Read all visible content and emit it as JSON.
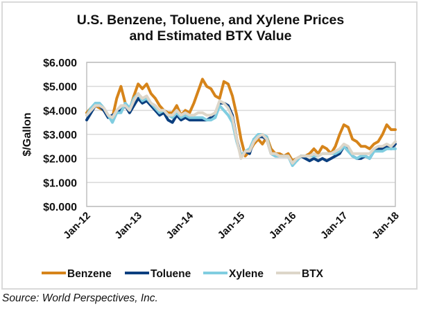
{
  "source": "Source: World Perspectives, Inc.",
  "chart_data": {
    "type": "line",
    "title_lines": [
      "U.S. Benzene, Toluene, and Xylene Prices",
      "and Estimated BTX Value"
    ],
    "xlabel": "",
    "ylabel": "$/Gallon",
    "ylim": [
      0,
      6
    ],
    "yticks": [
      "$0.000",
      "$1.000",
      "$2.000",
      "$3.000",
      "$4.000",
      "$5.000",
      "$6.000"
    ],
    "xticks": [
      "Jan-12",
      "Jan-13",
      "Jan-14",
      "Jan-15",
      "Jan-16",
      "Jan-17",
      "Jan-18"
    ],
    "x_start": "Jan-12",
    "x_step": "month",
    "grid": true,
    "legend_position": "bottom",
    "colors": {
      "Benzene": "#d6841a",
      "Toluene": "#0b3f7f",
      "Xylene": "#80cde0",
      "BTX": "#ddd6c9"
    },
    "series": [
      {
        "name": "Benzene",
        "values": [
          3.9,
          4.1,
          4.2,
          4.1,
          4.0,
          3.8,
          3.7,
          4.5,
          5.0,
          4.3,
          4.0,
          4.6,
          5.1,
          4.9,
          5.1,
          4.7,
          4.5,
          4.2,
          4.0,
          3.9,
          3.9,
          4.2,
          3.8,
          4.0,
          3.9,
          4.3,
          4.8,
          5.3,
          5.0,
          4.9,
          4.6,
          4.5,
          5.2,
          5.1,
          4.6,
          3.8,
          2.8,
          2.1,
          2.3,
          2.6,
          2.8,
          2.6,
          2.9,
          2.4,
          2.2,
          2.2,
          2.1,
          2.2,
          1.9,
          2.0,
          2.1,
          2.1,
          2.2,
          2.4,
          2.2,
          2.5,
          2.4,
          2.2,
          2.5,
          3.0,
          3.4,
          3.3,
          2.8,
          2.7,
          2.5,
          2.5,
          2.4,
          2.6,
          2.7,
          3.0,
          3.4,
          3.2,
          3.2
        ]
      },
      {
        "name": "Toluene",
        "values": [
          3.6,
          3.9,
          4.2,
          4.2,
          4.0,
          3.7,
          3.8,
          3.9,
          4.0,
          4.2,
          3.9,
          4.2,
          4.5,
          4.3,
          4.4,
          4.2,
          4.0,
          3.8,
          3.9,
          3.6,
          3.5,
          3.8,
          3.6,
          3.7,
          3.6,
          3.6,
          3.6,
          3.6,
          3.6,
          3.7,
          3.9,
          4.3,
          4.3,
          4.2,
          3.8,
          2.8,
          2.1,
          2.3,
          2.2,
          2.8,
          2.9,
          2.9,
          2.8,
          2.2,
          2.1,
          2.1,
          2.1,
          2.1,
          1.8,
          1.9,
          2.1,
          2.0,
          1.9,
          2.0,
          1.9,
          2.0,
          1.9,
          2.0,
          2.1,
          2.2,
          2.5,
          2.4,
          2.1,
          2.0,
          2.0,
          2.1,
          2.0,
          2.3,
          2.4,
          2.4,
          2.5,
          2.4,
          2.6
        ]
      },
      {
        "name": "Xylene",
        "values": [
          3.8,
          4.1,
          4.3,
          4.3,
          4.1,
          3.8,
          3.5,
          3.9,
          3.9,
          4.3,
          4.1,
          4.5,
          4.7,
          4.4,
          4.5,
          4.3,
          4.1,
          3.9,
          4.0,
          3.8,
          3.7,
          3.9,
          3.7,
          3.8,
          3.7,
          3.7,
          3.7,
          3.7,
          3.6,
          3.6,
          3.7,
          4.2,
          4.0,
          3.8,
          3.5,
          2.7,
          2.1,
          2.3,
          2.4,
          2.8,
          3.0,
          3.0,
          2.9,
          2.2,
          2.1,
          2.1,
          2.1,
          2.1,
          1.7,
          1.9,
          2.1,
          2.1,
          2.1,
          2.1,
          2.1,
          2.2,
          2.2,
          2.2,
          2.2,
          2.3,
          2.5,
          2.3,
          2.1,
          2.0,
          2.1,
          2.1,
          2.0,
          2.3,
          2.3,
          2.3,
          2.4,
          2.4,
          2.4
        ]
      },
      {
        "name": "BTX",
        "values": [
          3.8,
          4.0,
          4.2,
          4.2,
          4.1,
          3.8,
          3.7,
          4.0,
          4.2,
          4.2,
          4.0,
          4.4,
          4.7,
          4.5,
          4.6,
          4.3,
          4.2,
          4.0,
          4.0,
          3.8,
          3.8,
          4.0,
          3.8,
          3.9,
          3.8,
          3.8,
          3.9,
          3.9,
          3.8,
          3.8,
          3.9,
          4.4,
          4.3,
          4.1,
          3.7,
          2.8,
          2.0,
          2.3,
          2.3,
          2.7,
          2.9,
          3.0,
          2.8,
          2.2,
          2.2,
          2.1,
          2.1,
          2.1,
          1.8,
          2.0,
          2.1,
          2.1,
          2.1,
          2.2,
          2.1,
          2.2,
          2.2,
          2.2,
          2.3,
          2.4,
          2.6,
          2.5,
          2.2,
          2.2,
          2.2,
          2.2,
          2.2,
          2.4,
          2.5,
          2.5,
          2.6,
          2.5,
          2.7
        ]
      }
    ]
  }
}
